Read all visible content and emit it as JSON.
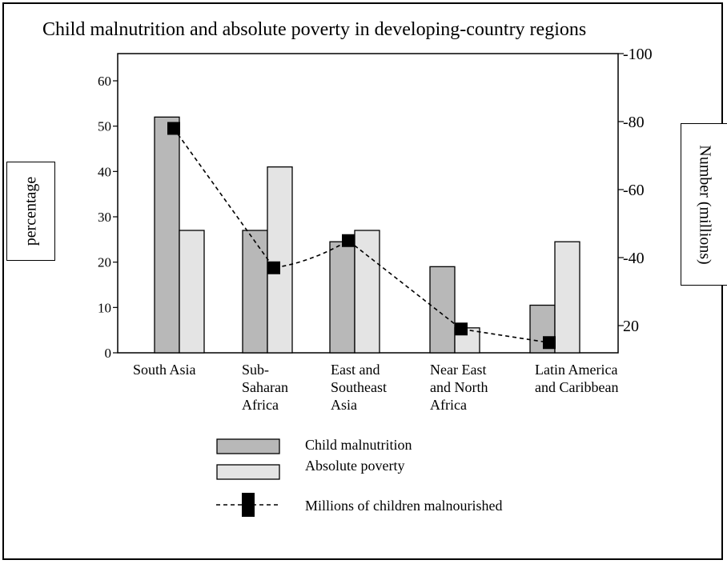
{
  "chart_data": {
    "type": "bar",
    "title": "Child malnutrition and absolute poverty in developing-country regions",
    "categories": [
      [
        "South Asia"
      ],
      [
        "Sub-",
        "Saharan",
        "Africa"
      ],
      [
        "East and",
        "Southeast",
        "Asia"
      ],
      [
        "Near East",
        "and North",
        "Africa"
      ],
      [
        "Latin America",
        "and Caribbean"
      ]
    ],
    "series": [
      {
        "name": "Child malnutrition",
        "type": "bar",
        "axis": "left",
        "color": "#b8b8b8",
        "values": [
          52,
          27,
          24.5,
          19,
          10.5
        ]
      },
      {
        "name": "Absolute poverty",
        "type": "bar",
        "axis": "left",
        "color": "#e4e4e4",
        "values": [
          27,
          41,
          27,
          5.5,
          24.5
        ]
      },
      {
        "name": "Millions of children malnourished",
        "type": "line",
        "axis": "right",
        "style": "dashed",
        "marker": "square",
        "color": "#000000",
        "values": [
          78,
          37,
          45,
          19,
          15
        ]
      }
    ],
    "ylabel": "percentage",
    "y2label": "Number (millions)",
    "ylim": [
      0,
      66
    ],
    "y2lim": [
      12,
      100
    ],
    "yticks": [
      0,
      10,
      20,
      30,
      40,
      50,
      60
    ],
    "y2ticks": [
      20,
      40,
      60,
      80,
      100
    ],
    "y2ticklabels": [
      "20",
      "-40",
      "-60",
      "-80",
      "-100"
    ],
    "grid": false,
    "legend_position": "bottom"
  }
}
